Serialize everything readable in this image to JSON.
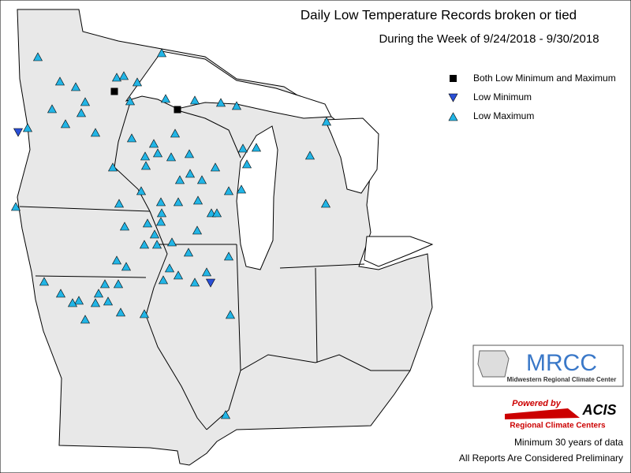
{
  "header": {
    "title": "Daily Low Temperature Records broken or tied",
    "subtitle": "During the Week of 9/24/2018 - 9/30/2018"
  },
  "legend": {
    "items": [
      "Both Low Minimum and Maximum",
      "Low Minimum",
      "Low Maximum"
    ]
  },
  "logos": {
    "mrcc": {
      "name": "MRCC",
      "full_name": "Midwestern Regional Climate Center"
    },
    "acis": {
      "powered_by": "Powered by",
      "name": "ACIS",
      "full_name": "Regional Climate Centers"
    }
  },
  "footnotes": [
    "Minimum 30 years of data",
    "All Reports Are Considered Preliminary"
  ]
}
